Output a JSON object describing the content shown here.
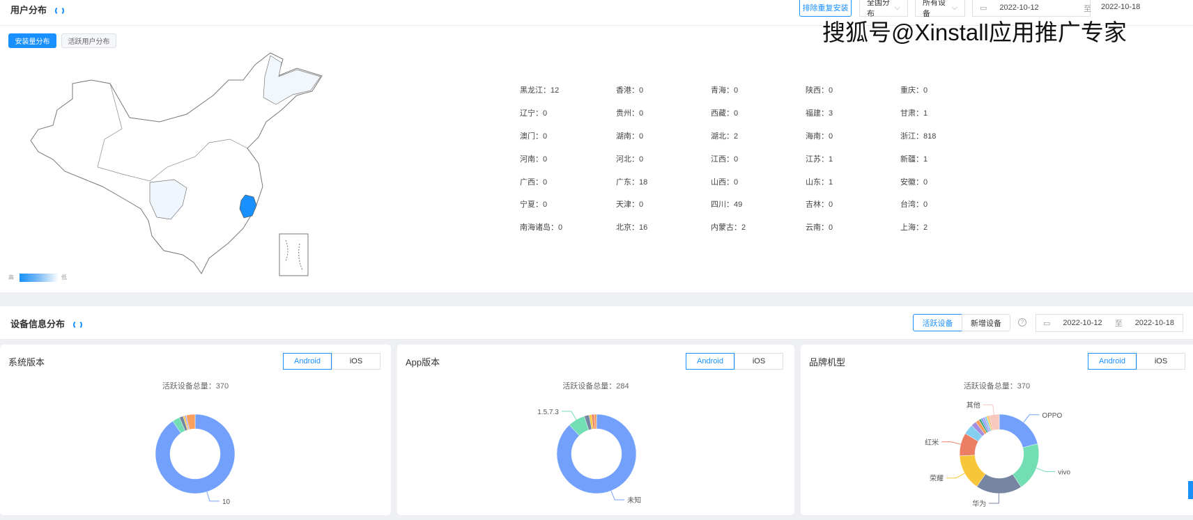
{
  "user_section": {
    "title": "用户分布",
    "dedupe_button": "排除重复安装",
    "region_select": "全国分布",
    "device_select": "所有设备",
    "date_start": "2022-10-12",
    "date_sep": "至",
    "date_end": "2022-10-18",
    "tabs": [
      {
        "label": "安装量分布",
        "active": true
      },
      {
        "label": "活跃用户分布",
        "active": false
      }
    ],
    "legend_high": "高",
    "legend_low": "低",
    "highlight_color": "#1890ff",
    "provinces": [
      [
        "黑龙江：12",
        "香港：0",
        "青海：0",
        "陕西：0",
        "重庆：0"
      ],
      [
        "辽宁：0",
        "贵州：0",
        "西藏：0",
        "福建：3",
        "甘肃：1"
      ],
      [
        "澳门：0",
        "湖南：0",
        "湖北：2",
        "海南：0",
        "浙江：818"
      ],
      [
        "河南：0",
        "河北：0",
        "江西：0",
        "江苏：1",
        "新疆：1"
      ],
      [
        "广西：0",
        "广东：18",
        "山西：0",
        "山东：1",
        "安徽：0"
      ],
      [
        "宁夏：0",
        "天津：0",
        "四川：49",
        "吉林：0",
        "台湾：0"
      ],
      [
        "南海诸岛：0",
        "北京：16",
        "内蒙古：2",
        "云南：0",
        "上海：2"
      ]
    ]
  },
  "watermark": "搜狐号@Xinstall应用推广专家",
  "device_section": {
    "title": "设备信息分布",
    "active_button": "活跃设备",
    "new_button": "新增设备",
    "help_icon": "question-circle-icon",
    "date_start": "2022-10-12",
    "date_sep": "至",
    "date_end": "2022-10-18"
  },
  "cards": [
    {
      "title": "系统版本",
      "android": "Android",
      "ios": "iOS",
      "total": "活跃设备总量：370"
    },
    {
      "title": "App版本",
      "android": "Android",
      "ios": "iOS",
      "total": "活跃设备总量：284"
    },
    {
      "title": "品牌机型",
      "android": "Android",
      "ios": "iOS",
      "total": "活跃设备总量：370"
    }
  ],
  "chart_data": [
    {
      "type": "pie",
      "title": "系统版本",
      "slices": [
        {
          "name": "10",
          "share": 88,
          "color": "#73a0fa"
        },
        {
          "share": 3,
          "color": "#73deb3"
        },
        {
          "share": 1.5,
          "color": "#7585a2"
        },
        {
          "share": 0.7,
          "color": "#f7c739"
        },
        {
          "share": 0.6,
          "color": "#a99cf0"
        },
        {
          "share": 3.5,
          "color": "#fa9f5d"
        }
      ]
    },
    {
      "type": "pie",
      "title": "App版本",
      "slices": [
        {
          "name": "未知",
          "share": 88,
          "color": "#73a0fa"
        },
        {
          "name": "1.5.7.3",
          "share": 7,
          "color": "#73deb3"
        },
        {
          "share": 2,
          "color": "#7585a2"
        },
        {
          "share": 1,
          "color": "#f7c739"
        },
        {
          "share": 1,
          "color": "#eb7e65"
        },
        {
          "share": 1,
          "color": "#fa9f5d"
        }
      ]
    },
    {
      "type": "pie",
      "title": "品牌机型",
      "slices": [
        {
          "name": "OPPO",
          "share": 20,
          "color": "#73a0fa"
        },
        {
          "name": "vivo",
          "share": 19,
          "color": "#73deb3"
        },
        {
          "name": "华为",
          "share": 18,
          "color": "#7585a2"
        },
        {
          "name": "荣耀",
          "share": 14,
          "color": "#f7c739"
        },
        {
          "name": "红米",
          "share": 9,
          "color": "#eb7e65"
        },
        {
          "share": 4,
          "color": "#84cff0"
        },
        {
          "share": 2,
          "color": "#a58de0"
        },
        {
          "share": 1.5,
          "color": "#fa9f5d"
        },
        {
          "share": 0.8,
          "color": "#3ba272"
        },
        {
          "share": 0.8,
          "color": "#73a0fa"
        },
        {
          "share": 0.8,
          "color": "#a99cf0"
        },
        {
          "share": 0.8,
          "color": "#84cff0"
        },
        {
          "share": 0.5,
          "color": "#f7c739"
        },
        {
          "share": 0.5,
          "color": "#fa9f5d"
        },
        {
          "name": "其他",
          "share": 4,
          "color": "#f7c8bd"
        }
      ]
    }
  ]
}
